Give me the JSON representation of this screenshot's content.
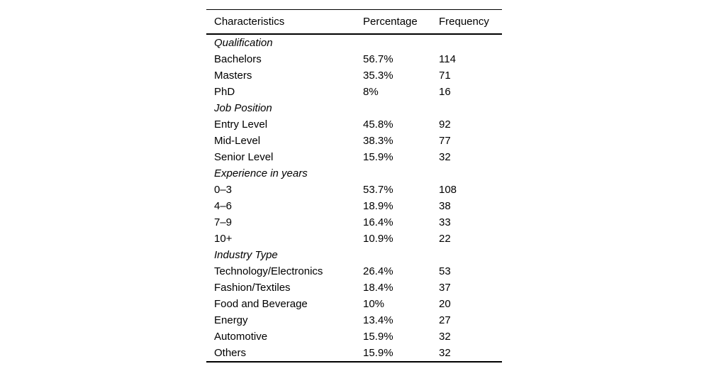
{
  "table": {
    "columns": [
      "Characteristics",
      "Percentage",
      "Frequency"
    ],
    "sections": [
      {
        "title": "Qualification",
        "rows": [
          [
            "Bachelors",
            "56.7%",
            "114"
          ],
          [
            "Masters",
            "35.3%",
            "71"
          ],
          [
            "PhD",
            "8%",
            "16"
          ]
        ]
      },
      {
        "title": "Job Position",
        "rows": [
          [
            "Entry Level",
            "45.8%",
            "92"
          ],
          [
            "Mid-Level",
            "38.3%",
            "77"
          ],
          [
            "Senior Level",
            "15.9%",
            "32"
          ]
        ]
      },
      {
        "title": "Experience in years",
        "rows": [
          [
            "0–3",
            "53.7%",
            "108"
          ],
          [
            "4–6",
            "18.9%",
            "38"
          ],
          [
            "7–9",
            "16.4%",
            "33"
          ],
          [
            "10+",
            "10.9%",
            "22"
          ]
        ]
      },
      {
        "title": "Industry Type",
        "rows": [
          [
            "Technology/Electronics",
            "26.4%",
            "53"
          ],
          [
            "Fashion/Textiles",
            "18.4%",
            "37"
          ],
          [
            "Food and Beverage",
            "10%",
            "20"
          ],
          [
            "Energy",
            "13.4%",
            "27"
          ],
          [
            "Automotive",
            "15.9%",
            "32"
          ],
          [
            "Others",
            "15.9%",
            "32"
          ]
        ]
      }
    ]
  }
}
